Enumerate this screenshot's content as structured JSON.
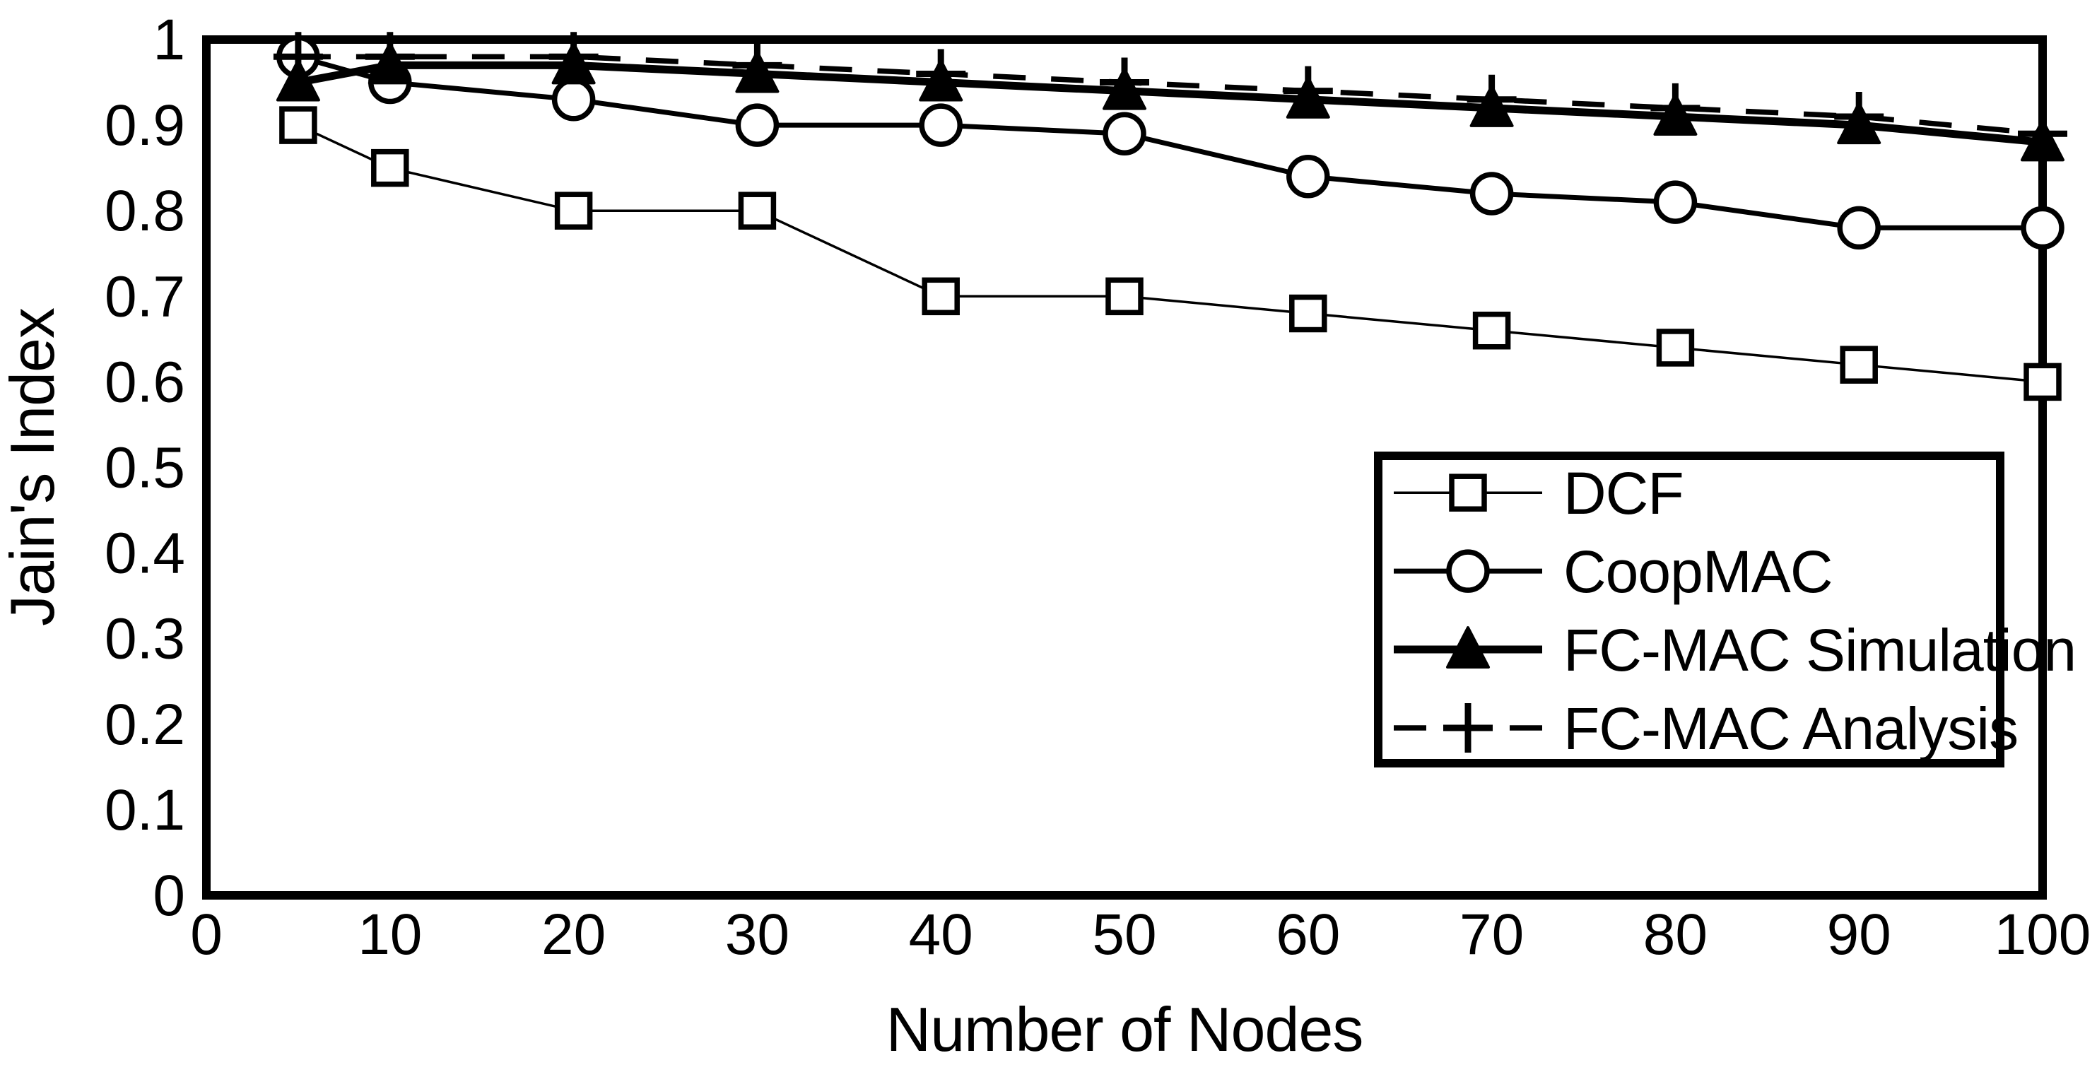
{
  "chart_data": {
    "type": "line",
    "x": [
      5,
      10,
      20,
      30,
      40,
      50,
      60,
      70,
      80,
      90,
      100
    ],
    "series": [
      {
        "name": "DCF",
        "marker": "open-square",
        "line": "thin-solid",
        "values": [
          0.9,
          0.85,
          0.8,
          0.8,
          0.7,
          0.7,
          0.68,
          0.66,
          0.64,
          0.62,
          0.6
        ]
      },
      {
        "name": "CoopMAC",
        "marker": "open-circle",
        "line": "medium-solid",
        "values": [
          0.98,
          0.95,
          0.93,
          0.9,
          0.9,
          0.89,
          0.84,
          0.82,
          0.81,
          0.78,
          0.78
        ]
      },
      {
        "name": "FC-MAC Simulation",
        "marker": "filled-triangle",
        "line": "thick-solid",
        "values": [
          0.95,
          0.97,
          0.97,
          0.96,
          0.95,
          0.94,
          0.93,
          0.92,
          0.91,
          0.9,
          0.88
        ]
      },
      {
        "name": "FC-MAC Analysis",
        "marker": "plus",
        "line": "dashed",
        "values": [
          0.98,
          0.98,
          0.98,
          0.97,
          0.96,
          0.95,
          0.94,
          0.93,
          0.92,
          0.91,
          0.89
        ]
      }
    ],
    "xlabel": "Number of Nodes",
    "ylabel": "Jain's Index",
    "xlim": [
      0,
      100
    ],
    "ylim": [
      0,
      1
    ],
    "x_ticks": [
      "0",
      "10",
      "20",
      "30",
      "40",
      "50",
      "60",
      "70",
      "80",
      "90",
      "100"
    ],
    "y_ticks": [
      "0",
      "0.1",
      "0.2",
      "0.3",
      "0.4",
      "0.5",
      "0.6",
      "0.7",
      "0.8",
      "0.9",
      "1"
    ],
    "grid": false,
    "legend_position": "right-middle",
    "colors": {
      "foreground": "#000000",
      "background": "#ffffff"
    }
  }
}
